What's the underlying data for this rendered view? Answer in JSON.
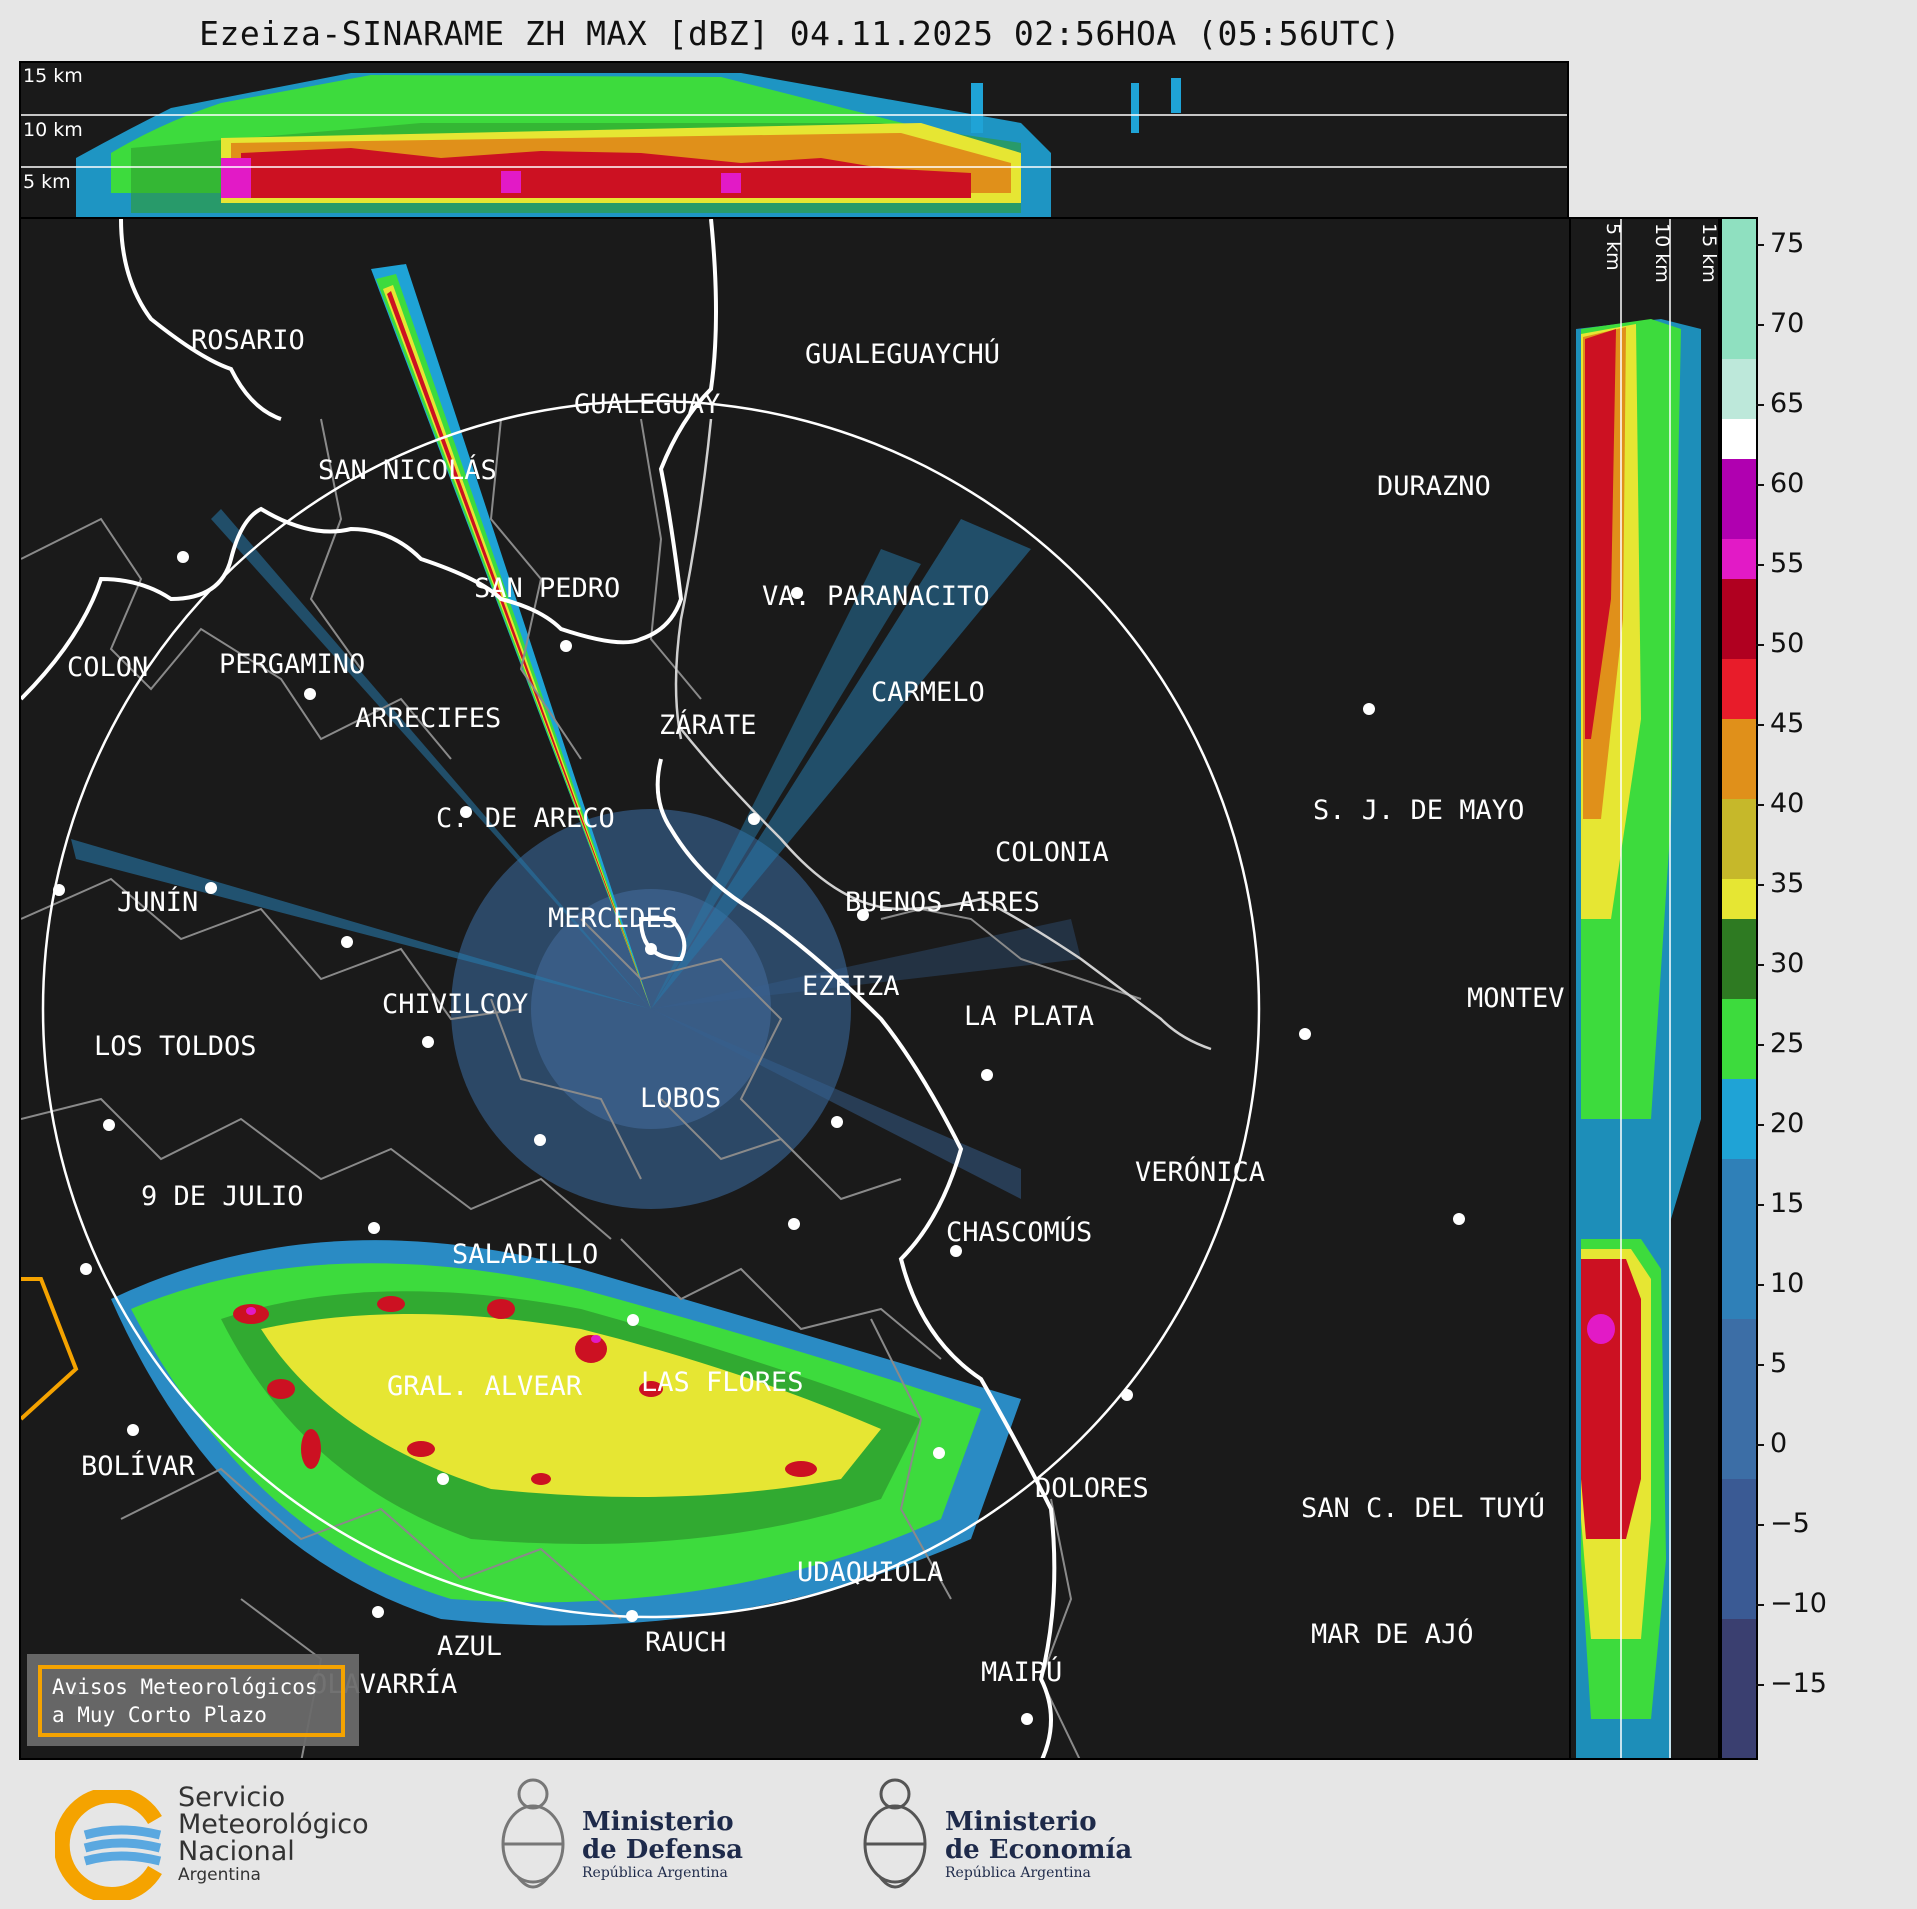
{
  "title": "Ezeiza-SINARAME ZH MAX [dBZ] 04.11.2025 02:56HOA (05:56UTC)",
  "top_panel": {
    "labels": [
      "15 km",
      "10 km",
      "5 km"
    ]
  },
  "right_panel": {
    "labels": [
      "5 km",
      "10 km",
      "15 km"
    ]
  },
  "colorbar": {
    "ticks": [
      "75",
      "70",
      "65",
      "60",
      "55",
      "50",
      "45",
      "40",
      "35",
      "30",
      "25",
      "20",
      "15",
      "10",
      "5",
      "0",
      "−5",
      "−10",
      "−15"
    ]
  },
  "cities": [
    {
      "name": "ROSARIO"
    },
    {
      "name": "GUALEGUAYCHÚ"
    },
    {
      "name": "GUALEGUAY"
    },
    {
      "name": "SAN NICOLÁS"
    },
    {
      "name": "DURAZNO"
    },
    {
      "name": "SAN PEDRO"
    },
    {
      "name": "VA. PARANACITO"
    },
    {
      "name": "COLON"
    },
    {
      "name": "PERGAMINO"
    },
    {
      "name": "CARMELO"
    },
    {
      "name": "ARRECIFES"
    },
    {
      "name": "ZÁRATE"
    },
    {
      "name": "S. J. DE MAYO"
    },
    {
      "name": "C. DE ARECO"
    },
    {
      "name": "COLONIA"
    },
    {
      "name": "JUNÍN"
    },
    {
      "name": "BUENOS AIRES"
    },
    {
      "name": "MERCEDES"
    },
    {
      "name": "EZEIZA"
    },
    {
      "name": "MONTEV"
    },
    {
      "name": "CHIVILCOY"
    },
    {
      "name": "LA PLATA"
    },
    {
      "name": "LOS TOLDOS"
    },
    {
      "name": "LOBOS"
    },
    {
      "name": "VERÓNICA"
    },
    {
      "name": "9 DE JULIO"
    },
    {
      "name": "CHASCOMÚS"
    },
    {
      "name": "SALADILLO"
    },
    {
      "name": "GRAL. ALVEAR"
    },
    {
      "name": "LAS FLORES"
    },
    {
      "name": "BOLÍVAR"
    },
    {
      "name": "DOLORES"
    },
    {
      "name": "SAN C. DEL TUYÚ"
    },
    {
      "name": "UDAQUIOLA"
    },
    {
      "name": "MAR DE AJÓ"
    },
    {
      "name": "AZUL"
    },
    {
      "name": "RAUCH"
    },
    {
      "name": "OLAVARRÍA"
    },
    {
      "name": "MAIPÚ"
    }
  ],
  "warning": {
    "line1": "Avisos Meteorológicos",
    "line2": "a Muy Corto Plazo"
  },
  "footer": {
    "smn": {
      "line1": "Servicio",
      "line2": "Meteorológico",
      "line3": "Nacional",
      "line4": "Argentina"
    },
    "defensa": {
      "line1": "Ministerio",
      "line2": "de Defensa",
      "line3": "República Argentina"
    },
    "economia": {
      "line1": "Ministerio",
      "line2": "de Economía",
      "line3": "República Argentina"
    }
  },
  "colors": {
    "background": "#1a1a1a",
    "range_ring": "#ffffff",
    "border": "#ffffff",
    "warning_frame": "#f5a300"
  }
}
